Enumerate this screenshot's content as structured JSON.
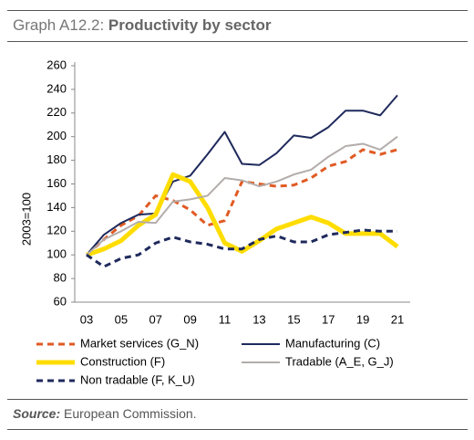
{
  "chart_data": {
    "type": "line",
    "title_label": "Graph A12.2:",
    "title": "Productivity by sector",
    "y_label": "2003=100",
    "source_label": "Source:",
    "source": "European Commission.",
    "categories": [
      "03",
      null,
      "05",
      null,
      "07",
      null,
      "09",
      null,
      "11",
      null,
      "13",
      null,
      "15",
      null,
      "17",
      null,
      "19",
      null,
      "21"
    ],
    "ylim": [
      60,
      260
    ],
    "yticks": [
      60,
      80,
      100,
      120,
      140,
      160,
      180,
      200,
      220,
      240,
      260
    ],
    "legend": "bottom",
    "series": [
      {
        "name": "Market services (G_N)",
        "color": "#e05a23",
        "style": "dashed",
        "values": [
          100,
          113,
          125,
          133,
          150,
          146,
          138,
          125,
          129,
          162,
          160,
          158,
          159,
          165,
          175,
          179,
          189,
          185,
          189
        ]
      },
      {
        "name": "Manufacturing (C)",
        "color": "#1f2a5c",
        "style": "solid",
        "values": [
          100,
          117,
          127,
          134,
          135,
          162,
          167,
          185,
          204,
          177,
          176,
          186,
          201,
          199,
          208,
          222,
          222,
          218,
          235
        ]
      },
      {
        "name": "Construction (F)",
        "color": "#ffdd00",
        "style": "thick",
        "values": [
          100,
          105,
          112,
          125,
          134,
          168,
          162,
          140,
          110,
          103,
          112,
          122,
          127,
          132,
          127,
          118,
          118,
          118,
          107
        ]
      },
      {
        "name": "Tradable (A_E, G_J)",
        "color": "#b3adab",
        "style": "solid",
        "values": [
          100,
          113,
          120,
          128,
          127,
          145,
          147,
          150,
          165,
          163,
          158,
          162,
          168,
          172,
          183,
          192,
          194,
          189,
          200
        ]
      },
      {
        "name": "Non tradable (F, K_U)",
        "color": "#1f2a5c",
        "style": "dashed",
        "values": [
          100,
          90,
          97,
          100,
          110,
          115,
          111,
          109,
          105,
          105,
          113,
          116,
          111,
          111,
          117,
          119,
          121,
          120,
          120
        ]
      }
    ]
  }
}
